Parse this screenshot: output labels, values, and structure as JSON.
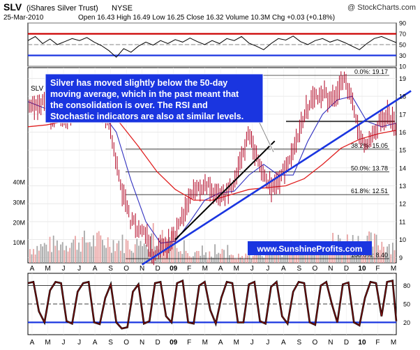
{
  "header": {
    "symbol": "SLV",
    "name": "(iShares Silver Trust)",
    "exchange": "NYSE",
    "source": "@ StockCharts.com",
    "date": "25-Mar-2010",
    "stats": "Open 16.43  High 16.49  Low 16.25  Close 16.32  Volume 10.3M  Chg +0.03 (+0.18%)",
    "symbol_label": "SLV"
  },
  "annotation": {
    "lines": [
      "Silver has moved slightly below the 50-day",
      "moving average, which in the past meant that",
      "the consolidation is over. The RSI and",
      "Stochastic indicators are also at similar levels."
    ]
  },
  "watermark": "www.SunshineProfits.com",
  "colors": {
    "price_bar": "#b00020",
    "ma_short": "#3030c0",
    "ma_long": "#e02020",
    "trend_blue": "#1a35e0",
    "trend_black": "#000000",
    "annotation_bg": "#1a35e0",
    "volume_down": "#e9a3a3",
    "volume_up": "#a8a8a8",
    "rsi_line": "#000000",
    "stoch_line": "#8b1010"
  },
  "chart_data": [
    {
      "type": "line",
      "panel": "rsi",
      "y_ticks": [
        10,
        30,
        50,
        70,
        90
      ],
      "y_range": [
        10,
        90
      ],
      "reference_lines": [
        {
          "value": 70,
          "color": "#cc0000"
        },
        {
          "value": 30,
          "color": "#1a35e0"
        }
      ],
      "x_range": [
        0,
        100
      ],
      "points": [
        [
          0,
          58
        ],
        [
          2,
          66
        ],
        [
          4,
          52
        ],
        [
          6,
          61
        ],
        [
          8,
          50
        ],
        [
          10,
          56
        ],
        [
          12,
          62
        ],
        [
          14,
          58
        ],
        [
          16,
          64
        ],
        [
          18,
          55
        ],
        [
          20,
          48
        ],
        [
          22,
          38
        ],
        [
          24,
          25
        ],
        [
          26,
          42
        ],
        [
          28,
          35
        ],
        [
          30,
          47
        ],
        [
          32,
          55
        ],
        [
          34,
          49
        ],
        [
          36,
          58
        ],
        [
          38,
          52
        ],
        [
          40,
          60
        ],
        [
          42,
          55
        ],
        [
          44,
          63
        ],
        [
          46,
          56
        ],
        [
          48,
          50
        ],
        [
          50,
          58
        ],
        [
          52,
          52
        ],
        [
          54,
          62
        ],
        [
          56,
          58
        ],
        [
          58,
          66
        ],
        [
          60,
          53
        ],
        [
          62,
          47
        ],
        [
          64,
          40
        ],
        [
          66,
          52
        ],
        [
          68,
          62
        ],
        [
          70,
          59
        ],
        [
          72,
          67
        ],
        [
          74,
          56
        ],
        [
          76,
          50
        ],
        [
          78,
          58
        ],
        [
          80,
          62
        ],
        [
          82,
          55
        ],
        [
          84,
          60
        ],
        [
          86,
          54
        ],
        [
          88,
          47
        ],
        [
          90,
          40
        ],
        [
          92,
          52
        ],
        [
          94,
          62
        ],
        [
          96,
          66
        ],
        [
          98,
          60
        ],
        [
          100,
          54
        ]
      ]
    },
    {
      "type": "line",
      "panel": "price",
      "y_ticks": [
        9,
        10,
        11,
        12,
        13,
        14,
        15,
        16,
        17,
        18,
        19
      ],
      "y_range": [
        8.7,
        19.6
      ],
      "x_labels": [
        "A",
        "M",
        "J",
        "J",
        "A",
        "S",
        "O",
        "N",
        "D",
        "09",
        "F",
        "M",
        "A",
        "M",
        "J",
        "J",
        "A",
        "S",
        "O",
        "N",
        "D",
        "10",
        "F",
        "M"
      ],
      "x_range": [
        0,
        100
      ],
      "fibonacci_levels": [
        {
          "label": "0.0%: 19.17",
          "value": 19.17
        },
        {
          "label": "38.2%: 15.05",
          "value": 15.05
        },
        {
          "label": "50.0%: 13.78",
          "value": 13.78
        },
        {
          "label": "61.8%: 12.51",
          "value": 12.51
        },
        {
          "label": "100.0%: 8.40",
          "value": 8.4
        }
      ],
      "horizontal_level": 16.6,
      "series": [
        {
          "role": "price",
          "points": [
            [
              0,
              17.8
            ],
            [
              2,
              17.3
            ],
            [
              4,
              17.6
            ],
            [
              6,
              16.9
            ],
            [
              8,
              17.2
            ],
            [
              10,
              16.6
            ],
            [
              12,
              17.0
            ],
            [
              14,
              17.7
            ],
            [
              16,
              17.3
            ],
            [
              18,
              17.9
            ],
            [
              20,
              17.2
            ],
            [
              22,
              16.5
            ],
            [
              24,
              14.2
            ],
            [
              26,
              12.4
            ],
            [
              28,
              11.0
            ],
            [
              30,
              10.6
            ],
            [
              32,
              10.2
            ],
            [
              34,
              9.1
            ],
            [
              36,
              9.4
            ],
            [
              38,
              9.7
            ],
            [
              40,
              10.3
            ],
            [
              42,
              11.2
            ],
            [
              44,
              12.4
            ],
            [
              46,
              12.8
            ],
            [
              48,
              13.1
            ],
            [
              50,
              12.8
            ],
            [
              52,
              12.2
            ],
            [
              54,
              12.6
            ],
            [
              56,
              13.1
            ],
            [
              58,
              14.6
            ],
            [
              60,
              15.8
            ],
            [
              62,
              14.6
            ],
            [
              64,
              13.7
            ],
            [
              66,
              12.9
            ],
            [
              68,
              13.2
            ],
            [
              70,
              14.1
            ],
            [
              72,
              14.7
            ],
            [
              74,
              16.3
            ],
            [
              76,
              17.4
            ],
            [
              78,
              17.9
            ],
            [
              80,
              18.3
            ],
            [
              82,
              17.6
            ],
            [
              84,
              18.4
            ],
            [
              86,
              18.9
            ],
            [
              88,
              17.6
            ],
            [
              90,
              15.7
            ],
            [
              92,
              15.1
            ],
            [
              94,
              15.9
            ],
            [
              96,
              16.7
            ],
            [
              98,
              17.0
            ],
            [
              100,
              16.32
            ]
          ]
        },
        {
          "role": "ma_short",
          "points": [
            [
              0,
              17.7
            ],
            [
              5,
              17.3
            ],
            [
              10,
              17.0
            ],
            [
              15,
              17.3
            ],
            [
              20,
              17.1
            ],
            [
              24,
              16.0
            ],
            [
              28,
              13.3
            ],
            [
              32,
              11.0
            ],
            [
              36,
              9.8
            ],
            [
              40,
              9.9
            ],
            [
              44,
              11.0
            ],
            [
              48,
              12.2
            ],
            [
              52,
              12.6
            ],
            [
              56,
              12.7
            ],
            [
              60,
              13.6
            ],
            [
              64,
              14.2
            ],
            [
              68,
              13.6
            ],
            [
              72,
              13.6
            ],
            [
              76,
              15.5
            ],
            [
              80,
              17.0
            ],
            [
              84,
              17.8
            ],
            [
              88,
              18.0
            ],
            [
              92,
              16.6
            ],
            [
              96,
              16.3
            ],
            [
              100,
              16.5
            ]
          ]
        },
        {
          "role": "ma_long",
          "points": [
            [
              0,
              16.3
            ],
            [
              5,
              16.4
            ],
            [
              10,
              16.6
            ],
            [
              15,
              16.9
            ],
            [
              20,
              17.0
            ],
            [
              25,
              16.5
            ],
            [
              30,
              15.2
            ],
            [
              35,
              13.8
            ],
            [
              40,
              12.8
            ],
            [
              45,
              12.2
            ],
            [
              50,
              12.2
            ],
            [
              55,
              12.5
            ],
            [
              60,
              12.8
            ],
            [
              65,
              12.9
            ],
            [
              70,
              13.0
            ],
            [
              75,
              13.4
            ],
            [
              80,
              14.2
            ],
            [
              85,
              15.1
            ],
            [
              90,
              15.6
            ],
            [
              95,
              15.9
            ],
            [
              100,
              16.1
            ]
          ]
        }
      ],
      "trendlines": [
        {
          "color": "blue",
          "from": [
            31,
            8.6
          ],
          "to": [
            104,
            18.3
          ]
        },
        {
          "color": "black",
          "from": [
            40,
            10.0
          ],
          "to": [
            67,
            15.5
          ]
        }
      ],
      "volume_ticks": [
        {
          "label": "10M",
          "value": 10
        },
        {
          "label": "20M",
          "value": 20
        },
        {
          "label": "30M",
          "value": 30
        },
        {
          "label": "40M",
          "value": 40
        }
      ]
    },
    {
      "type": "line",
      "panel": "stochastic",
      "y_ticks": [
        20,
        50,
        80
      ],
      "y_range": [
        0,
        100
      ],
      "reference_lines": [
        {
          "value": 80,
          "color": "#000000"
        },
        {
          "value": 50,
          "color": "#000000"
        },
        {
          "value": 20,
          "color": "#1a35e0"
        }
      ],
      "x_labels": [
        "A",
        "M",
        "J",
        "J",
        "A",
        "S",
        "O",
        "N",
        "D",
        "09",
        "F",
        "M",
        "A",
        "M",
        "J",
        "J",
        "A",
        "S",
        "O",
        "N",
        "D",
        "10",
        "F",
        "M"
      ],
      "x_range": [
        0,
        100
      ],
      "points": [
        [
          0,
          84
        ],
        [
          1.5,
          86
        ],
        [
          3,
          38
        ],
        [
          4.5,
          20
        ],
        [
          6,
          72
        ],
        [
          7.5,
          86
        ],
        [
          9,
          84
        ],
        [
          10.5,
          22
        ],
        [
          12,
          18
        ],
        [
          13.5,
          70
        ],
        [
          15,
          84
        ],
        [
          16.5,
          86
        ],
        [
          18,
          20
        ],
        [
          19.5,
          17
        ],
        [
          21,
          60
        ],
        [
          22.5,
          82
        ],
        [
          24,
          20
        ],
        [
          25.5,
          10
        ],
        [
          27,
          12
        ],
        [
          28.5,
          70
        ],
        [
          30,
          82
        ],
        [
          31.5,
          18
        ],
        [
          33,
          22
        ],
        [
          34.5,
          84
        ],
        [
          36,
          86
        ],
        [
          37.5,
          30
        ],
        [
          39,
          20
        ],
        [
          40.5,
          84
        ],
        [
          42,
          88
        ],
        [
          43.5,
          20
        ],
        [
          45,
          18
        ],
        [
          46.5,
          80
        ],
        [
          48,
          86
        ],
        [
          49.5,
          40
        ],
        [
          51,
          18
        ],
        [
          52.5,
          60
        ],
        [
          54,
          86
        ],
        [
          55.5,
          84
        ],
        [
          57,
          20
        ],
        [
          58.5,
          20
        ],
        [
          60,
          82
        ],
        [
          61.5,
          86
        ],
        [
          63,
          22
        ],
        [
          64.5,
          18
        ],
        [
          66,
          78
        ],
        [
          67.5,
          86
        ],
        [
          69,
          30
        ],
        [
          70.5,
          18
        ],
        [
          72,
          70
        ],
        [
          73.5,
          86
        ],
        [
          75,
          84
        ],
        [
          76.5,
          20
        ],
        [
          78,
          16
        ],
        [
          79.5,
          80
        ],
        [
          81,
          86
        ],
        [
          82.5,
          50
        ],
        [
          84,
          20
        ],
        [
          85.5,
          82
        ],
        [
          87,
          85
        ],
        [
          88.5,
          20
        ],
        [
          90,
          15
        ],
        [
          91.5,
          60
        ],
        [
          93,
          86
        ],
        [
          94.5,
          84
        ],
        [
          96,
          30
        ],
        [
          97.5,
          86
        ],
        [
          99,
          88
        ],
        [
          100,
          22
        ]
      ]
    }
  ]
}
